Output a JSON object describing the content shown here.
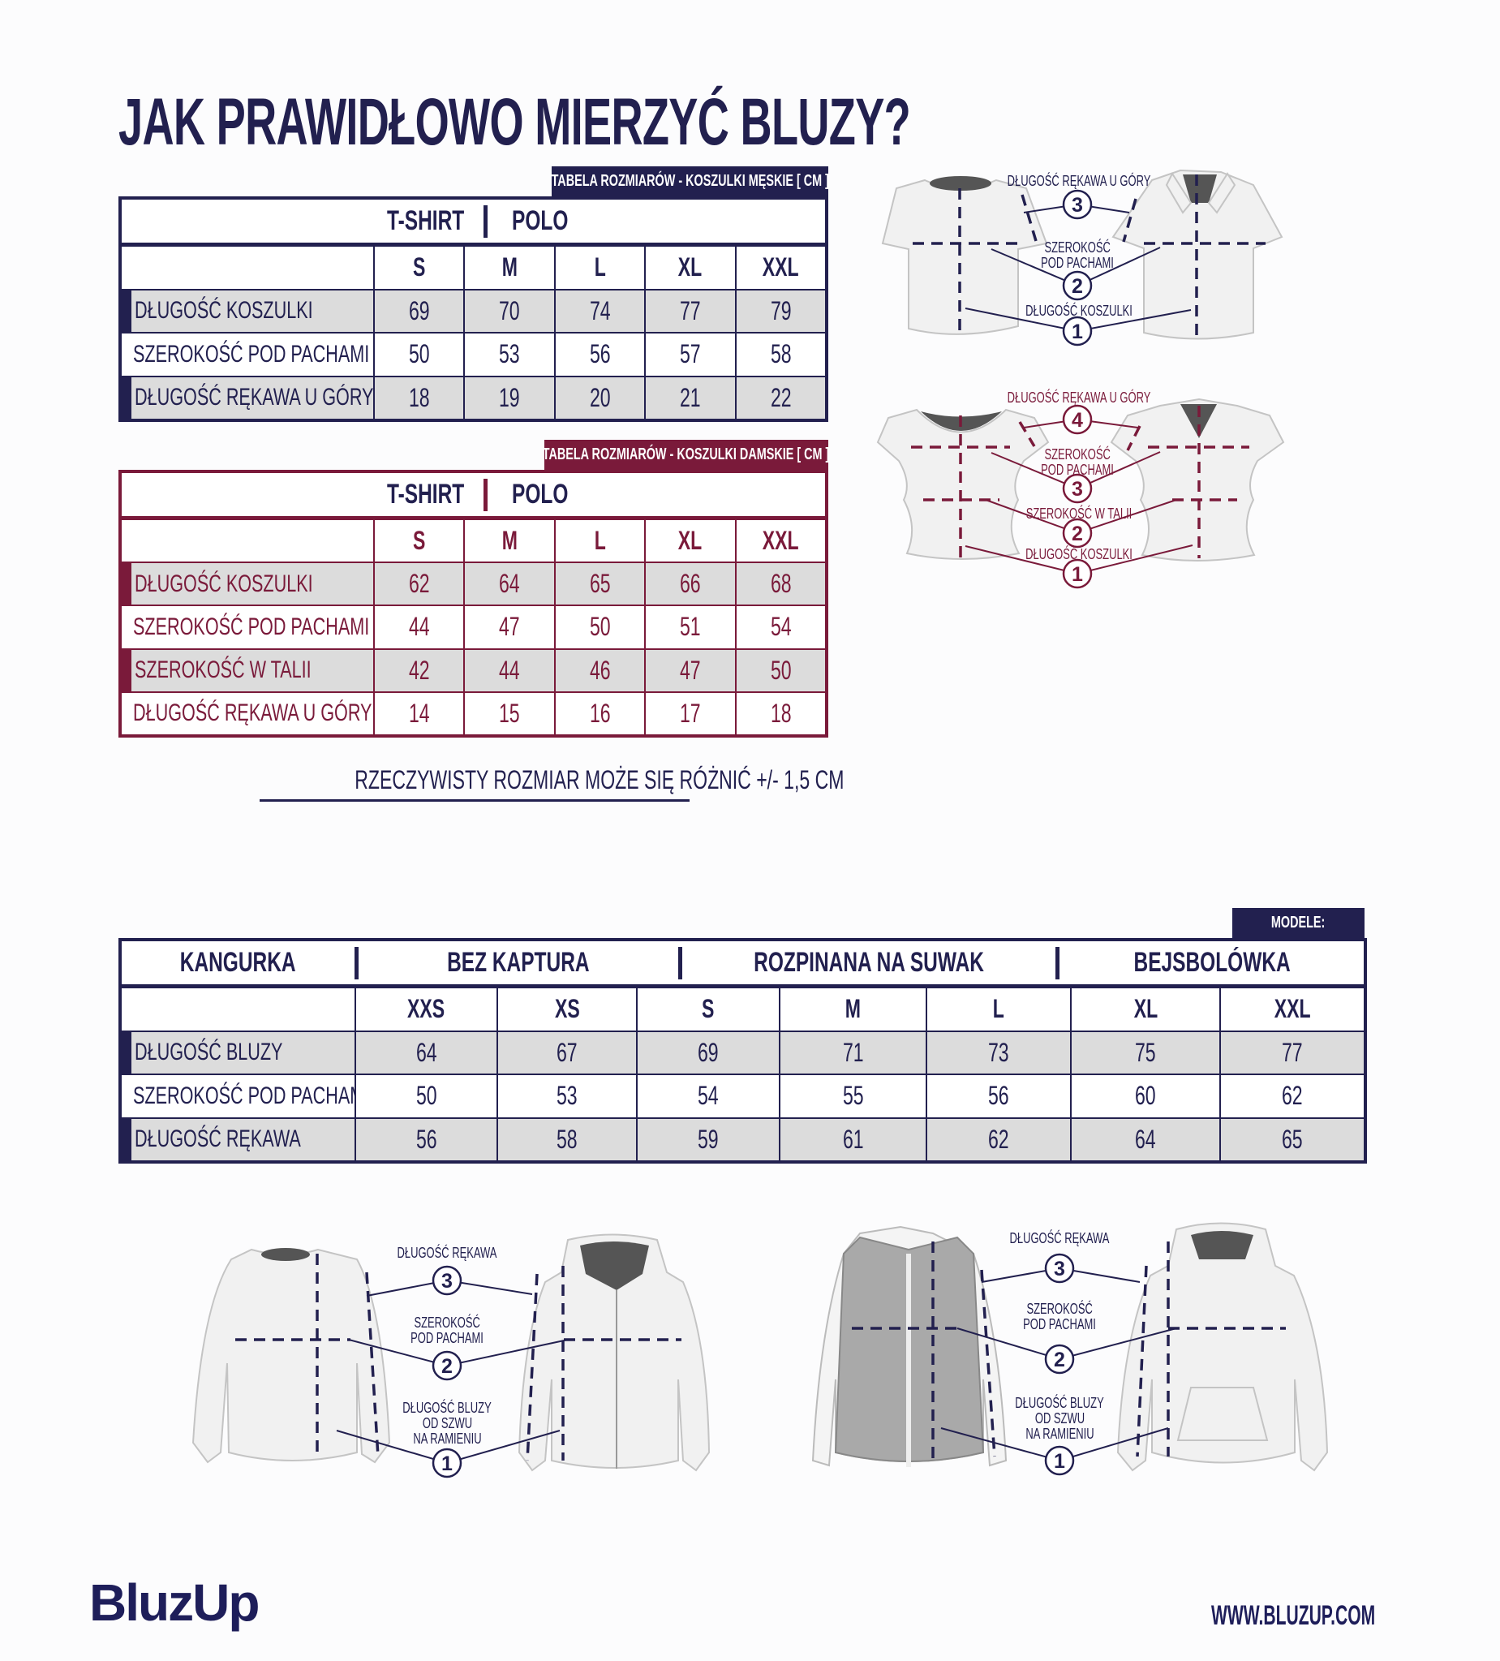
{
  "title": "JAK PRAWIDŁOWO MIERZYĆ BLUZY?",
  "colors": {
    "navy": "#22204f",
    "maroon": "#7a1a3a",
    "row_gray": "#dcdcdc"
  },
  "men_table": {
    "tag": "TABELA ROZMIARÓW - KOSZULKI MĘSKIE [ CM ]",
    "models": [
      "T-SHIRT",
      "POLO"
    ],
    "sizes": [
      "S",
      "M",
      "L",
      "XL",
      "XXL"
    ],
    "rows": [
      {
        "label": "DŁUGOŚĆ KOSZULKI",
        "values": [
          "69",
          "70",
          "74",
          "77",
          "79"
        ]
      },
      {
        "label": "SZEROKOŚĆ POD PACHAMI",
        "values": [
          "50",
          "53",
          "56",
          "57",
          "58"
        ]
      },
      {
        "label": "DŁUGOŚĆ RĘKAWA U GÓRY",
        "values": [
          "18",
          "19",
          "20",
          "21",
          "22"
        ]
      }
    ]
  },
  "women_table": {
    "tag": "TABELA ROZMIARÓW - KOSZULKI DAMSKIE [ CM ]",
    "models": [
      "T-SHIRT",
      "POLO"
    ],
    "sizes": [
      "S",
      "M",
      "L",
      "XL",
      "XXL"
    ],
    "rows": [
      {
        "label": "DŁUGOŚĆ KOSZULKI",
        "values": [
          "62",
          "64",
          "65",
          "66",
          "68"
        ]
      },
      {
        "label": "SZEROKOŚĆ POD PACHAMI",
        "values": [
          "44",
          "47",
          "50",
          "51",
          "54"
        ]
      },
      {
        "label": "SZEROKOŚĆ W TALII",
        "values": [
          "42",
          "44",
          "46",
          "47",
          "50"
        ]
      },
      {
        "label": "DŁUGOŚĆ RĘKAWA U GÓRY",
        "values": [
          "14",
          "15",
          "16",
          "17",
          "18"
        ]
      }
    ]
  },
  "note": "RZECZYWISTY ROZMIAR MOŻE SIĘ RÓŻNIĆ +/- 1,5 CM",
  "hoodie_table": {
    "tag": "MODELE:",
    "models": [
      "KANGURKA",
      "BEZ KAPTURA",
      "ROZPINANA NA SUWAK",
      "BEJSBOLÓWKA"
    ],
    "sizes": [
      "XXS",
      "XS",
      "S",
      "M",
      "L",
      "XL",
      "XXL"
    ],
    "rows": [
      {
        "label": "DŁUGOŚĆ BLUZY",
        "values": [
          "64",
          "67",
          "69",
          "71",
          "73",
          "75",
          "77"
        ]
      },
      {
        "label": "SZEROKOŚĆ POD PACHAMI",
        "values": [
          "50",
          "53",
          "54",
          "55",
          "56",
          "60",
          "62"
        ]
      },
      {
        "label": "DŁUGOŚĆ RĘKAWA",
        "values": [
          "56",
          "58",
          "59",
          "61",
          "62",
          "64",
          "65"
        ]
      }
    ]
  },
  "figures": {
    "men": {
      "sleeve": "DŁUGOŚĆ RĘKAWA U GÓRY",
      "chest": [
        "SZEROKOŚĆ",
        "POD PACHAMI"
      ],
      "length": "DŁUGOŚĆ KOSZULKI",
      "markers": [
        "1",
        "2",
        "3"
      ]
    },
    "women": {
      "sleeve": "DŁUGOŚĆ RĘKAWA U GÓRY",
      "chest": [
        "SZEROKOŚĆ",
        "POD PACHAMI"
      ],
      "waist": "SZEROKOŚĆ W TALII",
      "length": "DŁUGOŚĆ KOSZULKI",
      "markers": [
        "1",
        "2",
        "3",
        "4"
      ]
    },
    "hoodies": {
      "sleeve": "DŁUGOŚĆ RĘKAWA",
      "chest": [
        "SZEROKOŚĆ",
        "POD PACHAMI"
      ],
      "length": [
        "DŁUGOŚĆ BLUZY",
        "OD SZWU",
        "NA RAMIENIU"
      ],
      "markers": [
        "1",
        "2",
        "3"
      ]
    }
  },
  "logo": "BluzUp",
  "url": "WWW.BLUZUP.COM"
}
